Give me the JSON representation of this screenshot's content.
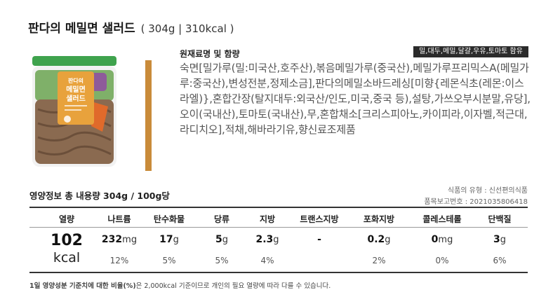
{
  "title": {
    "name": "판다의 메밀면 샐러드",
    "spec": "( 304g  |  310kcal )"
  },
  "product": {
    "label_lines": [
      "판다의",
      "메밀면",
      "샐러드"
    ],
    "colors": {
      "lid": "#3fa34d",
      "label": "#e8a23c",
      "noodle": "#8a6a50",
      "greens": "#7fb069",
      "purple": "#8e5b9a",
      "carrot": "#e06a2b"
    }
  },
  "ingredients": {
    "heading": "원재료명 및 함량",
    "allergen": "밀,대두,메밀,달걀,우유,토마토 함유",
    "text": "숙면[밀가루(밀:미국산,호주산),볶음메밀가루(중국산),메밀가루프리믹스A(메밀가루:중국산),변성전분,정제소금],판다의메밀소바드레싱[미향{레몬식초(레몬:이스라엘)},혼합간장(탈지대두:외국산/인도,미국,중국 등),설탕,가쓰오부시분말,유당],오이(국내산),토마토(국내산),무,혼합채소[크리스피아노,카이피라,이자벨,적근대,라디치오],적채,해바라기유,향신료조제품"
  },
  "nutrition": {
    "heading": "영양정보  총 내용량 304g / 100g당",
    "type_line": "식품의 유형 : 신선편의식품",
    "report_line": "품목보고번호 : 2021035806418",
    "kcal_label": "열량",
    "kcal_value": "102",
    "kcal_unit": "kcal",
    "columns": [
      {
        "label": "나트륨",
        "amount": "232",
        "unit": "mg",
        "percent": "12%"
      },
      {
        "label": "탄수화물",
        "amount": "17",
        "unit": "g",
        "percent": "5%"
      },
      {
        "label": "당류",
        "amount": "5",
        "unit": "g",
        "percent": "5%"
      },
      {
        "label": "지방",
        "amount": "2.3",
        "unit": "g",
        "percent": "4%"
      },
      {
        "label": "트랜스지방",
        "amount": "-",
        "unit": "",
        "percent": ""
      },
      {
        "label": "포화지방",
        "amount": "0.2",
        "unit": "g",
        "percent": "2%"
      },
      {
        "label": "콜레스테롤",
        "amount": "0",
        "unit": "mg",
        "percent": "0%"
      },
      {
        "label": "단백질",
        "amount": "3",
        "unit": "g",
        "percent": "6%"
      }
    ],
    "footnote_bold": "1일 영양성분 기준치에 대한 비율(%)",
    "footnote_rest": "은 2,000kcal 기준이므로 개인의 필요 열량에 따라 다를 수 있습니다."
  }
}
